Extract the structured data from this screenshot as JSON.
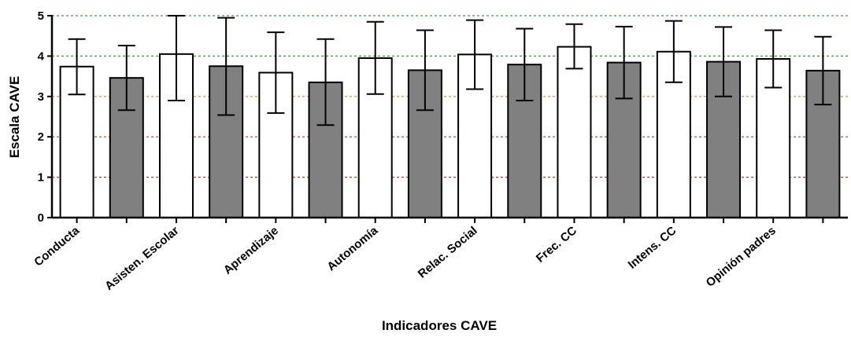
{
  "chart_data": {
    "type": "bar",
    "xlabel": "Indicadores CAVE",
    "ylabel": "Escala CAVE",
    "ylim": [
      0,
      5
    ],
    "yticks": [
      "0",
      "1",
      "2",
      "3",
      "4",
      "5"
    ],
    "reference_lines": [
      {
        "y": 1,
        "color": "#c0392b"
      },
      {
        "y": 2,
        "color": "#c0392b"
      },
      {
        "y": 3,
        "color": "#d4862a"
      },
      {
        "y": 4,
        "color": "#3a9a3a"
      },
      {
        "y": 5,
        "color": "#3a9a3a"
      }
    ],
    "category_labels": [
      "Conducta",
      "Asisten. Escolar",
      "Aprendizaje",
      "Autonomía",
      "Relac. Social",
      "Frec. CC",
      "Intens. CC",
      "Opinión padres"
    ],
    "bars": [
      {
        "value": 3.74,
        "error_low": 3.05,
        "error_high": 4.42,
        "fill": "#ffffff"
      },
      {
        "value": 3.46,
        "error_low": 2.66,
        "error_high": 4.26,
        "fill": "#808080"
      },
      {
        "value": 4.05,
        "error_low": 2.9,
        "error_high": 5.0,
        "fill": "#ffffff"
      },
      {
        "value": 3.75,
        "error_low": 2.54,
        "error_high": 4.95,
        "fill": "#808080"
      },
      {
        "value": 3.59,
        "error_low": 2.59,
        "error_high": 4.59,
        "fill": "#ffffff"
      },
      {
        "value": 3.35,
        "error_low": 2.29,
        "error_high": 4.42,
        "fill": "#808080"
      },
      {
        "value": 3.95,
        "error_low": 3.06,
        "error_high": 4.85,
        "fill": "#ffffff"
      },
      {
        "value": 3.65,
        "error_low": 2.66,
        "error_high": 4.64,
        "fill": "#808080"
      },
      {
        "value": 4.04,
        "error_low": 3.18,
        "error_high": 4.89,
        "fill": "#ffffff"
      },
      {
        "value": 3.79,
        "error_low": 2.9,
        "error_high": 4.68,
        "fill": "#808080"
      },
      {
        "value": 4.23,
        "error_low": 3.69,
        "error_high": 4.79,
        "fill": "#ffffff"
      },
      {
        "value": 3.84,
        "error_low": 2.95,
        "error_high": 4.73,
        "fill": "#808080"
      },
      {
        "value": 4.11,
        "error_low": 3.35,
        "error_high": 4.87,
        "fill": "#ffffff"
      },
      {
        "value": 3.86,
        "error_low": 3.0,
        "error_high": 4.72,
        "fill": "#808080"
      },
      {
        "value": 3.93,
        "error_low": 3.22,
        "error_high": 4.64,
        "fill": "#ffffff"
      },
      {
        "value": 3.64,
        "error_low": 2.8,
        "error_high": 4.48,
        "fill": "#808080"
      }
    ]
  }
}
